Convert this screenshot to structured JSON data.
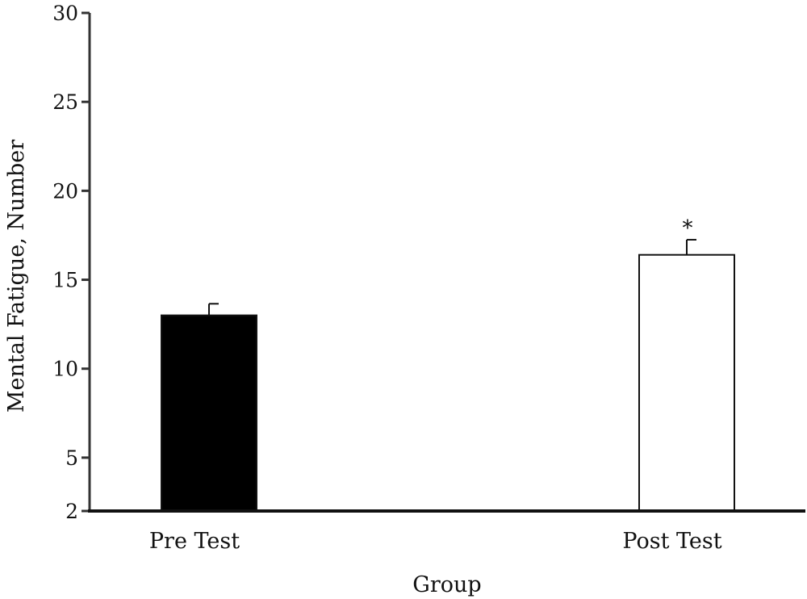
{
  "chart_data": {
    "type": "bar",
    "categories": [
      "Pre Test",
      "Post Test"
    ],
    "values": [
      13.0,
      16.4
    ],
    "errors": [
      0.65,
      0.85
    ],
    "fills": [
      "#000000",
      "#ffffff"
    ],
    "annotations": [
      "",
      "*"
    ],
    "xlabel": "Group",
    "ylabel": "Mental Fatigue, Number",
    "ylim": [
      2,
      30
    ],
    "yticks": [
      2,
      5,
      10,
      15,
      20,
      25,
      30
    ],
    "grid": false,
    "legend": "none"
  }
}
